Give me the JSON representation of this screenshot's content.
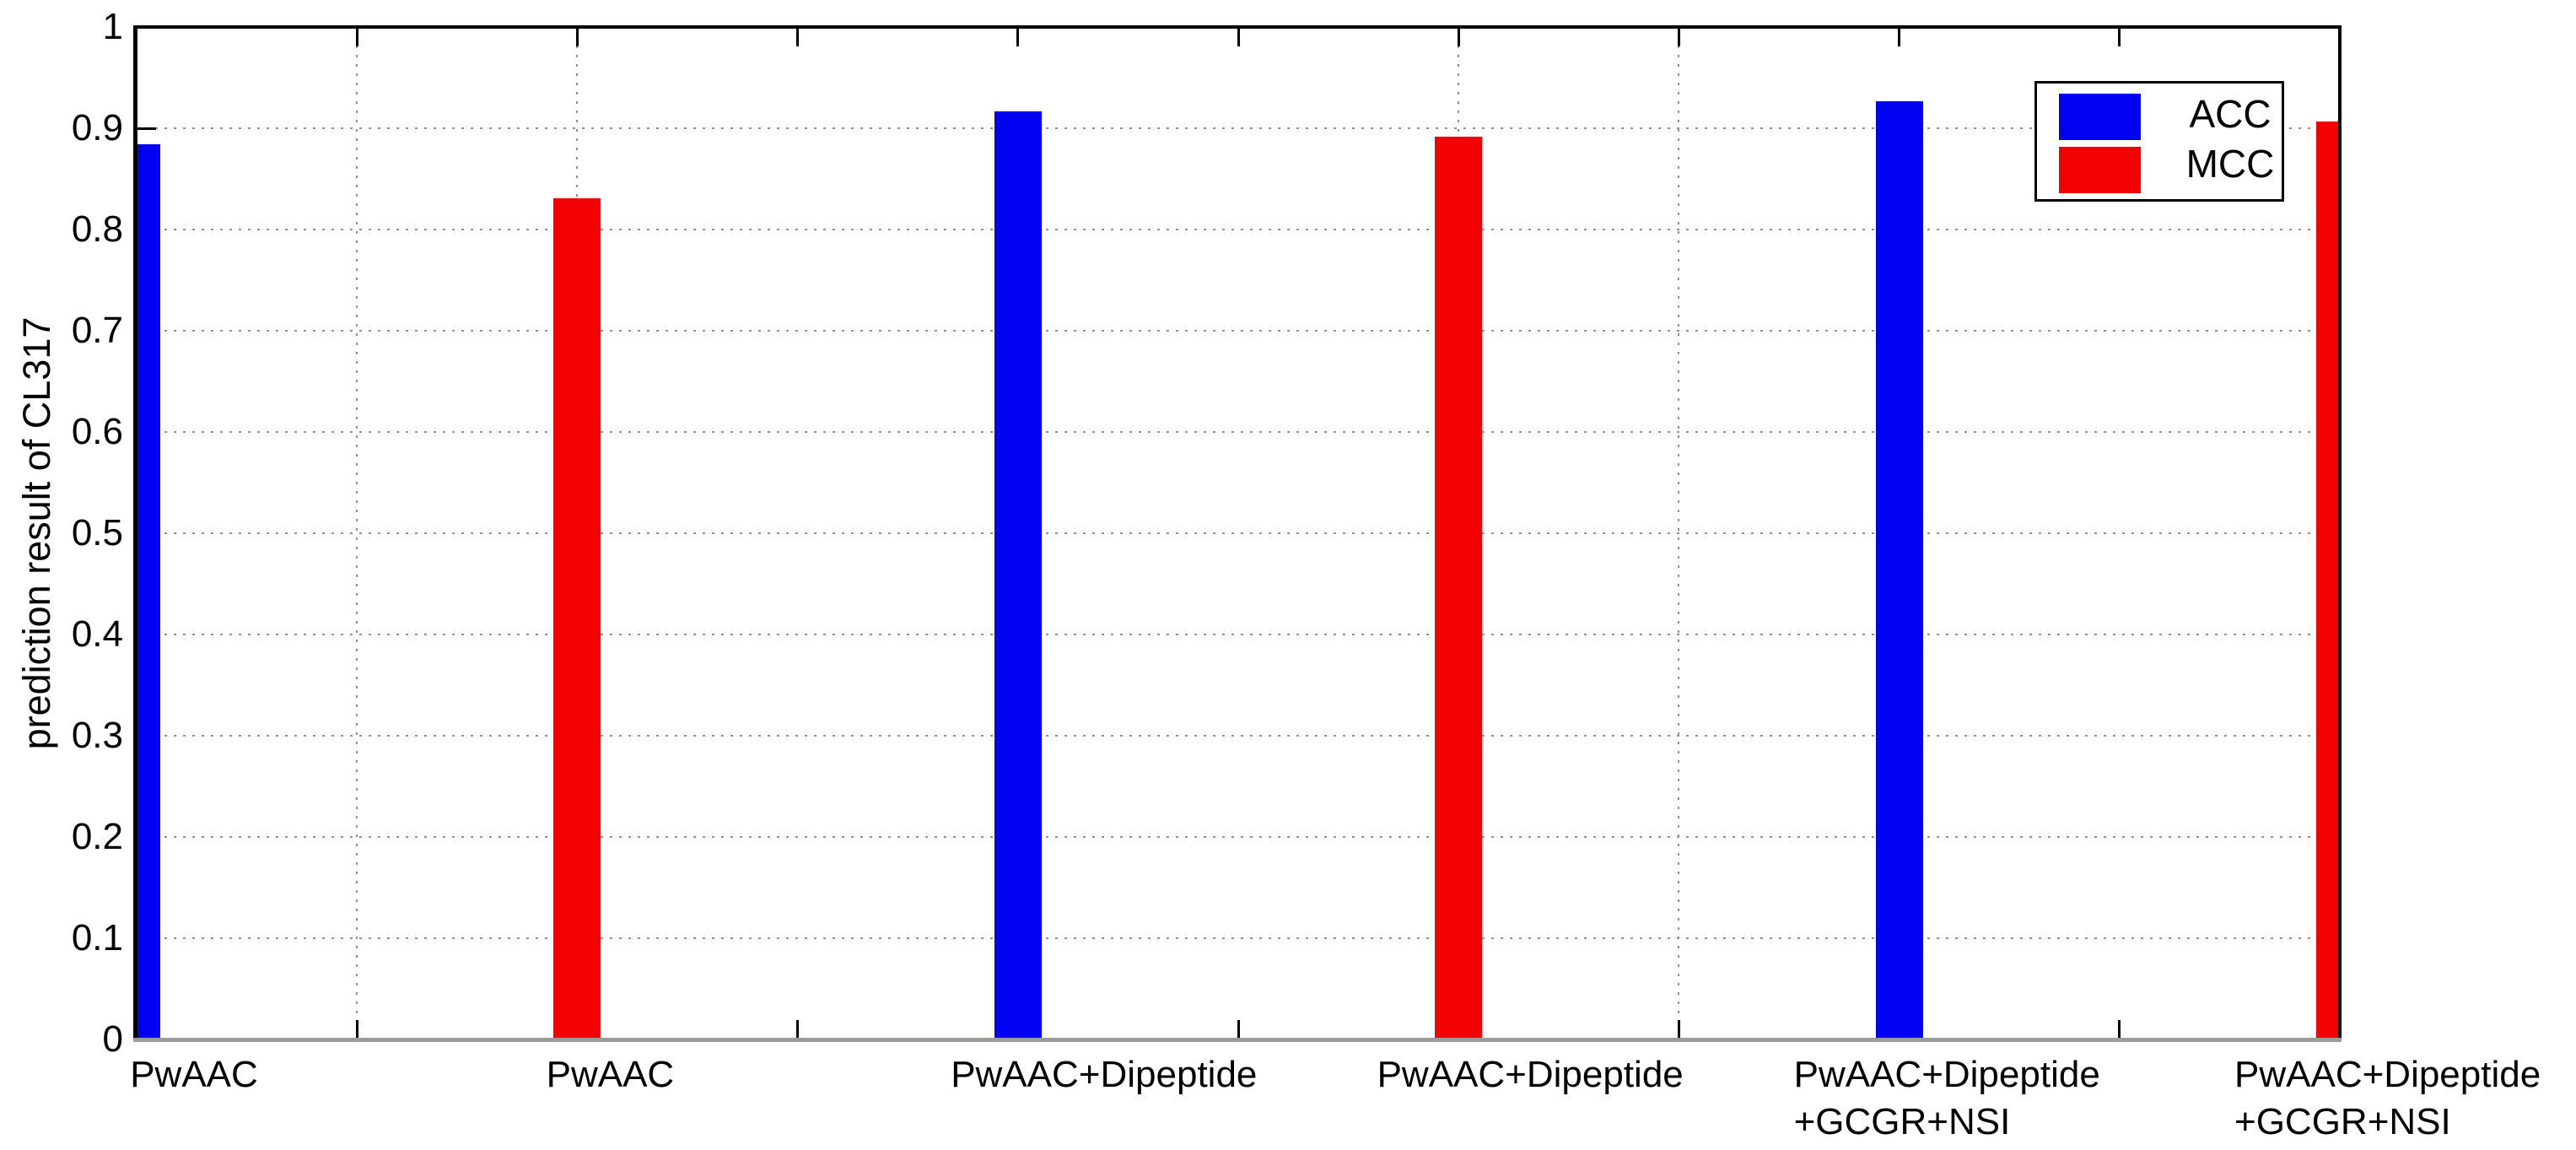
{
  "figure": {
    "background_color": "#ffffff",
    "frame_color": "#000000",
    "bottom_axis_color": "#9c9c9c",
    "grid_color": "#8f8f8f"
  },
  "y_axis": {
    "title": "prediction result of CL317",
    "tick_labels": [
      "0",
      "0.1",
      "0.2",
      "0.3",
      "0.4",
      "0.5",
      "0.6",
      "0.7",
      "0.8",
      "0.9",
      "1"
    ],
    "min": 0,
    "max": 1
  },
  "legend": {
    "position": "top-right",
    "entries": [
      {
        "label": "ACC",
        "color": "#0202f2"
      },
      {
        "label": "MCC",
        "color": "#f20202"
      }
    ]
  },
  "chart_data": {
    "type": "bar",
    "title": "",
    "xlabel": "",
    "ylabel": "prediction result of CL317",
    "ylim": [
      0,
      1
    ],
    "yticks": [
      0,
      0.1,
      0.2,
      0.3,
      0.4,
      0.5,
      0.6,
      0.7,
      0.8,
      0.9,
      1
    ],
    "grid": true,
    "legend_position": "top-right",
    "categories": [
      "PwAAC",
      "PwAAC",
      "PwAAC+Dipeptide",
      "PwAAC+Dipeptide",
      "PwAAC+Dipeptide +GCGR+NSI",
      "PwAAC+Dipeptide +GCGR+NSI"
    ],
    "bars": [
      {
        "label": "PwAAC",
        "label2": "",
        "series": "ACC",
        "value": 0.884
      },
      {
        "label": "PwAAC",
        "label2": "",
        "series": "MCC",
        "value": 0.831
      },
      {
        "label": "PwAAC+Dipeptide",
        "label2": "",
        "series": "ACC",
        "value": 0.917
      },
      {
        "label": "PwAAC+Dipeptide",
        "label2": "",
        "series": "MCC",
        "value": 0.892
      },
      {
        "label": "PwAAC+Dipeptide",
        "label2": "+GCGR+NSI",
        "series": "ACC",
        "value": 0.927
      },
      {
        "label": "PwAAC+Dipeptide",
        "label2": "+GCGR+NSI",
        "series": "MCC",
        "value": 0.907
      }
    ],
    "series": [
      {
        "name": "ACC",
        "color": "#0202f2",
        "values": [
          0.884,
          0.917,
          0.927
        ]
      },
      {
        "name": "MCC",
        "color": "#f20202",
        "values": [
          0.831,
          0.892,
          0.907
        ]
      }
    ]
  }
}
